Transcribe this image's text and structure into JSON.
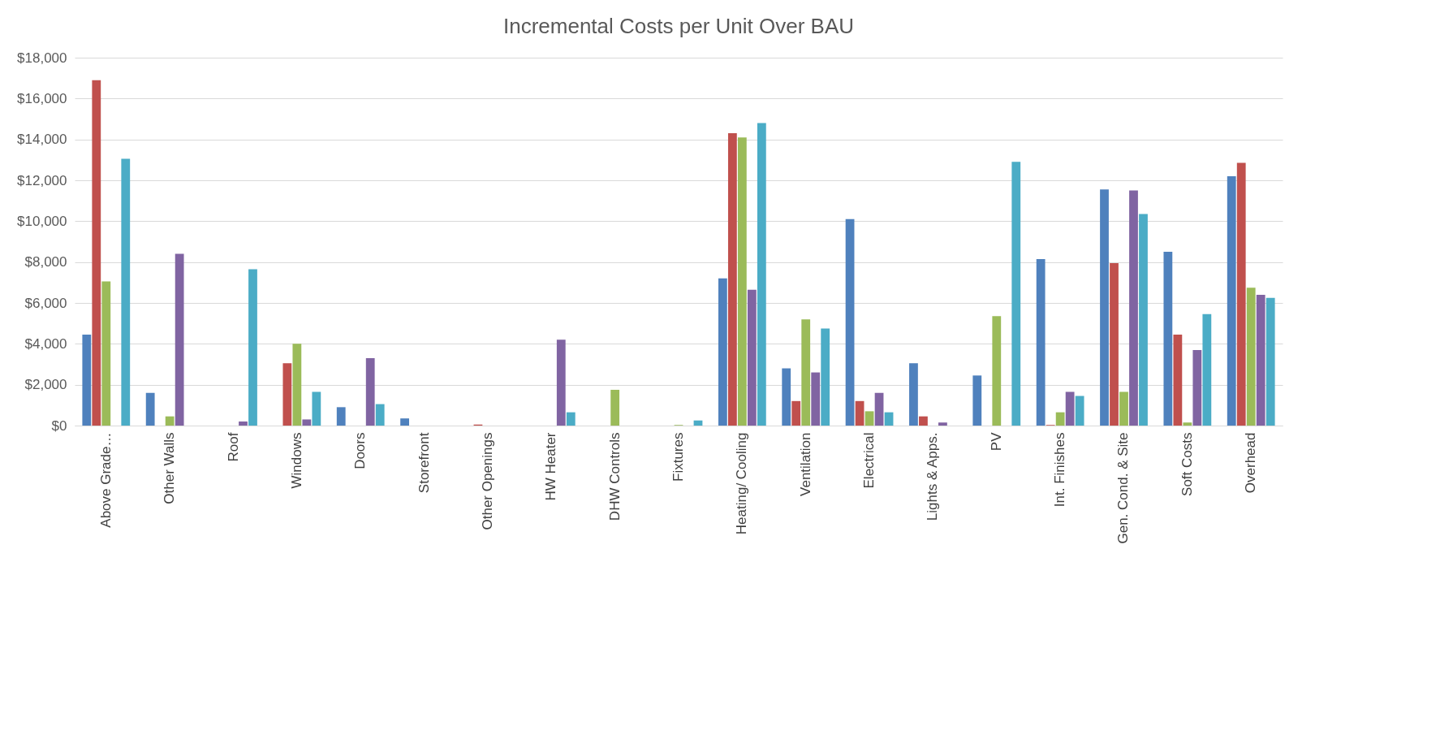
{
  "chart_data": {
    "type": "bar",
    "title": "Incremental Costs per Unit Over BAU",
    "categories": [
      "Above Grade…",
      "Other Walls",
      "Roof",
      "Windows",
      "Doors",
      "Storefront",
      "Other Openings",
      "HW Heater",
      "DHW Controls",
      "Fixtures",
      "Heating/ Cooling",
      "Ventilation",
      "Electrical",
      "Lights & Apps.",
      "PV",
      "Int. Finishes",
      "Gen. Cond. & Site",
      "Soft Costs",
      "Overhead"
    ],
    "series": [
      {
        "color": "#4f81bd",
        "values": [
          4450,
          1600,
          0,
          0,
          900,
          350,
          0,
          0,
          0,
          0,
          7200,
          2800,
          10100,
          3050,
          2450,
          8150,
          11550,
          8500,
          12200
        ]
      },
      {
        "color": "#c0504d",
        "values": [
          16900,
          0,
          0,
          3050,
          0,
          0,
          50,
          0,
          0,
          0,
          14300,
          1200,
          1200,
          450,
          0,
          30,
          7950,
          4450,
          12850
        ]
      },
      {
        "color": "#9bbb59",
        "values": [
          7050,
          450,
          0,
          4000,
          0,
          0,
          0,
          0,
          1750,
          30,
          14100,
          5200,
          700,
          0,
          5350,
          650,
          1650,
          150,
          6750
        ]
      },
      {
        "color": "#8064a2",
        "values": [
          0,
          8400,
          200,
          300,
          3300,
          0,
          0,
          4200,
          0,
          0,
          6650,
          2600,
          1600,
          150,
          0,
          1650,
          11500,
          3700,
          6400
        ]
      },
      {
        "color": "#4bacc6",
        "values": [
          13050,
          0,
          7650,
          1650,
          1050,
          0,
          0,
          650,
          0,
          250,
          14800,
          4750,
          650,
          0,
          12900,
          1450,
          10350,
          5450,
          6250
        ]
      }
    ],
    "ylim": [
      0,
      18000
    ],
    "yticks": [
      {
        "value": 0,
        "label": "$0"
      },
      {
        "value": 2000,
        "label": "$2,000"
      },
      {
        "value": 4000,
        "label": "$4,000"
      },
      {
        "value": 6000,
        "label": "$6,000"
      },
      {
        "value": 8000,
        "label": "$8,000"
      },
      {
        "value": 10000,
        "label": "$10,000"
      },
      {
        "value": 12000,
        "label": "$12,000"
      },
      {
        "value": 14000,
        "label": "$14,000"
      },
      {
        "value": 16000,
        "label": "$16,000"
      },
      {
        "value": 18000,
        "label": "$18,000"
      }
    ],
    "grid": "y"
  }
}
